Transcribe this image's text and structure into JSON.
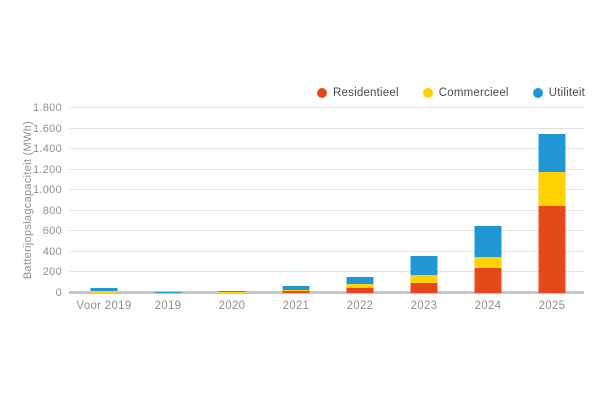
{
  "chart_data": {
    "type": "bar",
    "stacked": true,
    "title": "",
    "xlabel": "",
    "ylabel": "Batterijopslagcapaciteit (MWh)",
    "ylim": [
      0,
      1800
    ],
    "ytick_step": 200,
    "ytick_labels": [
      "0",
      "200",
      "400",
      "600",
      "800",
      "1.000",
      "1.200",
      "1.400",
      "1.600",
      "1.800"
    ],
    "categories": [
      "Voor 2019",
      "2019",
      "2020",
      "2021",
      "2022",
      "2023",
      "2024",
      "2025"
    ],
    "series": [
      {
        "name": "Residentieel",
        "color": "#E5491B",
        "values": [
          0,
          0,
          0,
          20,
          50,
          100,
          240,
          850
        ]
      },
      {
        "name": "Commercieel",
        "color": "#FFD100",
        "values": [
          15,
          0,
          10,
          10,
          40,
          80,
          110,
          330
        ]
      },
      {
        "name": "Utiliteit",
        "color": "#2096D5",
        "values": [
          30,
          10,
          10,
          40,
          70,
          180,
          300,
          370
        ]
      }
    ],
    "totals": [
      45,
      10,
      20,
      70,
      160,
      360,
      650,
      1550
    ],
    "grid": true,
    "legend_position": "top-right",
    "colors": {
      "axis_text": "#8f8f8f",
      "legend_text": "#4a4a4a",
      "gridline": "#e3e3e3",
      "zero_line": "#c7c7c7",
      "background": "#ffffff"
    }
  }
}
